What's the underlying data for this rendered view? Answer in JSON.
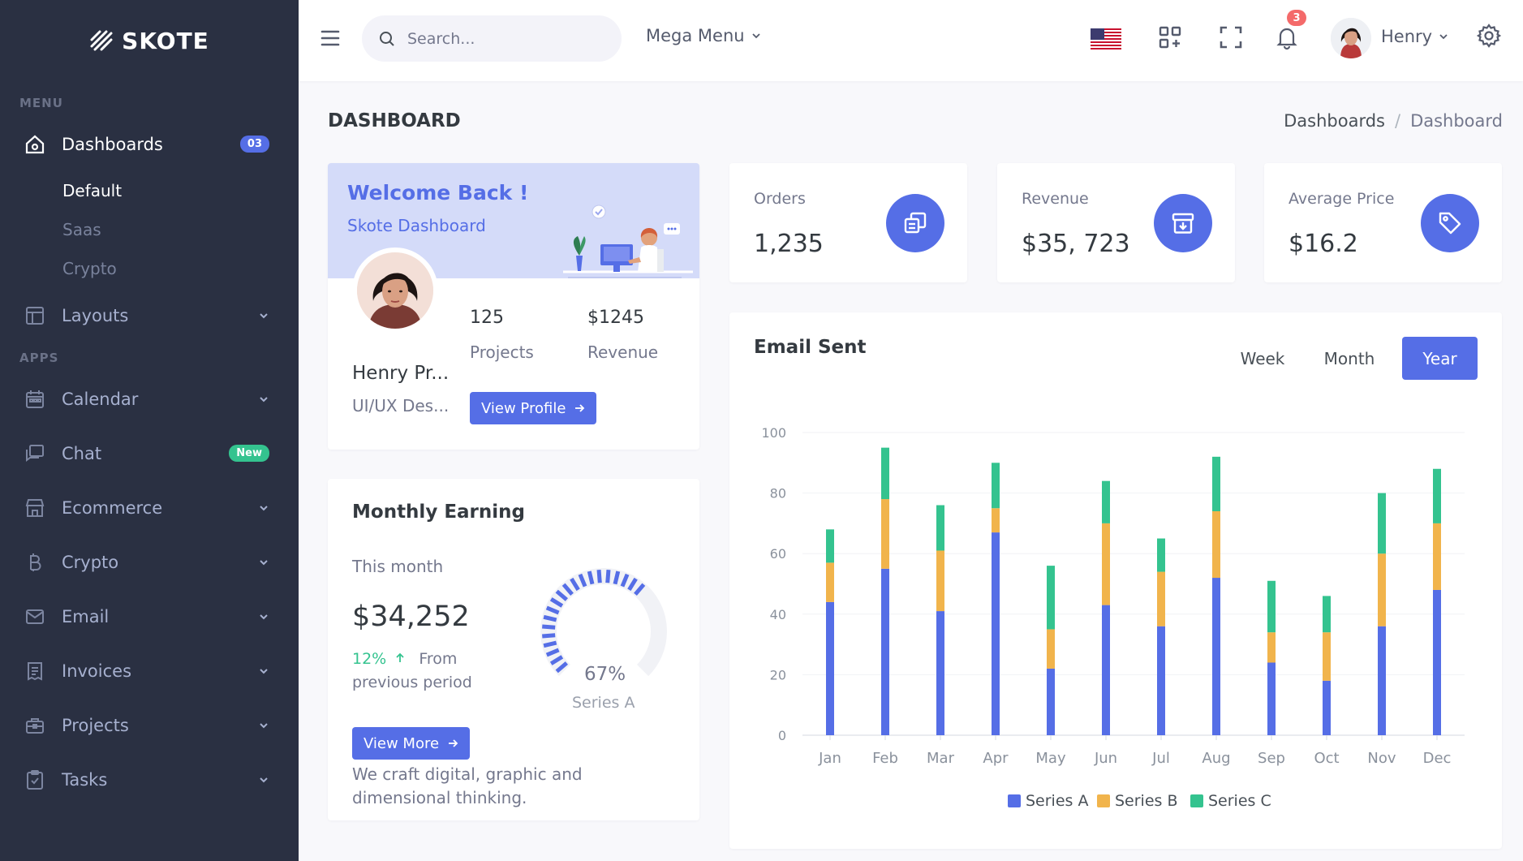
{
  "brand": {
    "name": "SKOTE"
  },
  "sidebar": {
    "menu_title": "MENU",
    "apps_title": "APPS",
    "dashboards": {
      "label": "Dashboards",
      "badge": "03",
      "subitems": [
        "Default",
        "Saas",
        "Crypto"
      ]
    },
    "layouts": {
      "label": "Layouts"
    },
    "apps": [
      {
        "label": "Calendar",
        "icon": "calendar-icon"
      },
      {
        "label": "Chat",
        "icon": "chat-icon",
        "badge": "New"
      },
      {
        "label": "Ecommerce",
        "icon": "store-icon"
      },
      {
        "label": "Crypto",
        "icon": "bitcoin-icon"
      },
      {
        "label": "Email",
        "icon": "envelope-icon"
      },
      {
        "label": "Invoices",
        "icon": "receipt-icon"
      },
      {
        "label": "Projects",
        "icon": "briefcase-icon"
      },
      {
        "label": "Tasks",
        "icon": "clipboard-check-icon"
      }
    ]
  },
  "topbar": {
    "search_placeholder": "Search...",
    "mega_menu": "Mega Menu",
    "notification_count": "3",
    "user_name": "Henry"
  },
  "page": {
    "title": "DASHBOARD",
    "breadcrumb": [
      "Dashboards",
      "Dashboard"
    ]
  },
  "welcome": {
    "title": "Welcome Back !",
    "subtitle": "Skote Dashboard",
    "name": "Henry Pr...",
    "role": "UI/UX Des...",
    "projects_value": "125",
    "projects_label": "Projects",
    "revenue_value": "$1245",
    "revenue_label": "Revenue",
    "button": "View Profile"
  },
  "earning": {
    "title": "Monthly Earning",
    "month_label": "This month",
    "amount": "$34,252",
    "change": "12%",
    "change_text": "From previous period",
    "button": "View More",
    "tagline": "We craft digital, graphic and dimensional thinking.",
    "gauge_value": "67%",
    "gauge_fraction": 0.67,
    "gauge_label": "Series A"
  },
  "stats": [
    {
      "label": "Orders",
      "value": "1,235",
      "icon": "copy-icon"
    },
    {
      "label": "Revenue",
      "value": "$35, 723",
      "icon": "archive-in-icon"
    },
    {
      "label": "Average Price",
      "value": "$16.2",
      "icon": "price-tag-icon"
    }
  ],
  "email_card": {
    "title": "Email Sent",
    "toggles": [
      "Week",
      "Month",
      "Year"
    ],
    "active_toggle": "Year"
  },
  "colors": {
    "primary": "#556ee6",
    "series_b": "#f1b44c",
    "series_c": "#34c38f",
    "sidebar": "#2a3042"
  },
  "chart_data": {
    "type": "bar",
    "stacked": true,
    "categories": [
      "Jan",
      "Feb",
      "Mar",
      "Apr",
      "May",
      "Jun",
      "Jul",
      "Aug",
      "Sep",
      "Oct",
      "Nov",
      "Dec"
    ],
    "series": [
      {
        "name": "Series A",
        "color": "#556ee6",
        "values": [
          44,
          55,
          41,
          67,
          22,
          43,
          36,
          52,
          24,
          18,
          36,
          48
        ]
      },
      {
        "name": "Series B",
        "color": "#f1b44c",
        "values": [
          13,
          23,
          20,
          8,
          13,
          27,
          18,
          22,
          10,
          16,
          24,
          22
        ]
      },
      {
        "name": "Series C",
        "color": "#34c38f",
        "values": [
          11,
          17,
          15,
          15,
          21,
          14,
          11,
          18,
          17,
          12,
          20,
          18
        ]
      }
    ],
    "yticks": [
      "0",
      "20",
      "40",
      "60",
      "80",
      "100"
    ],
    "ylim": [
      0,
      100
    ],
    "grid": true,
    "legend": "bottom"
  }
}
